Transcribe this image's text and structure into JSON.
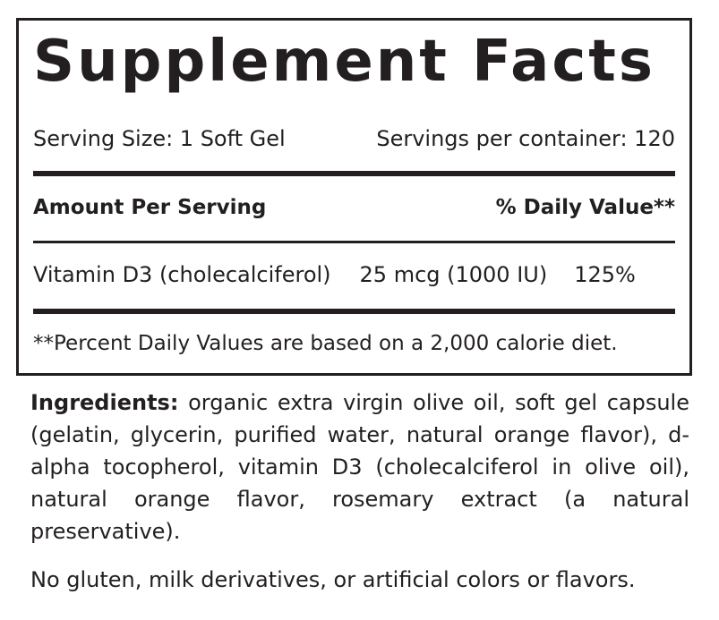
{
  "title": "Supplement Facts",
  "serving_size": "Serving Size: 1 Soft Gel",
  "servings_per_container": "Servings per container: 120",
  "amount_header": "Amount Per Serving",
  "dv_header": "% Daily Value**",
  "nutrient": {
    "name": "Vitamin D3 (cholecalciferol)",
    "amount": "25 mcg (1000 IU)",
    "dv": "125%"
  },
  "footnote": "**Percent Daily Values are based on a 2,000 calorie diet.",
  "ingredients_label": "Ingredients:",
  "ingredients_text": " organic extra virgin olive oil, soft gel capsule (gelatin, glycerin, purified water, natural orange flavor), d-alpha tocopherol, vitamin D3 (cholecalciferol in olive oil), natural orange flavor, rosemary extract (a natural preservative).",
  "allergen_statement": "No gluten, milk derivatives, or artificial colors or flavors."
}
